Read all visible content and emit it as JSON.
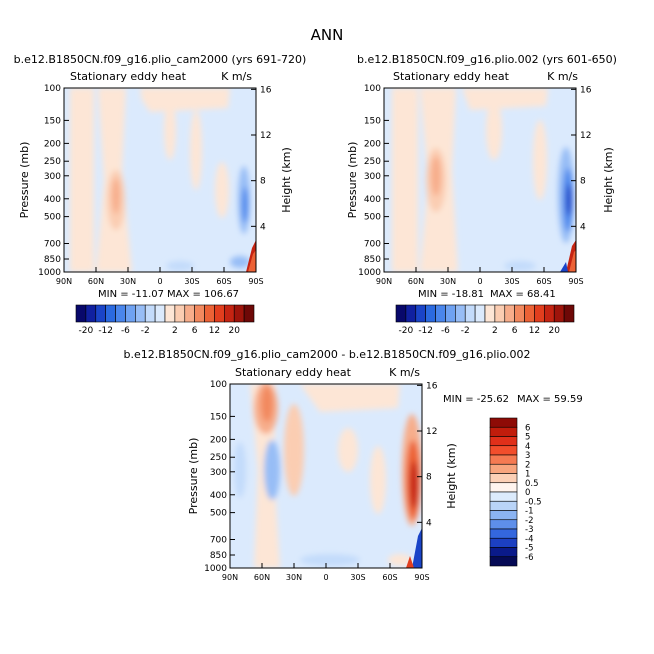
{
  "figure": {
    "title": "ANN"
  },
  "chart_data": [
    {
      "type": "heatmap",
      "title": "b.e12.B1850CN.f09_g16.plio_cam2000 (yrs 691-720)",
      "subtitle": "Stationary eddy heat",
      "units": "K m/s",
      "xlabel": "",
      "ylabel": "Pressure (mb)",
      "y2label": "Height (km)",
      "x_ticks": [
        "90N",
        "60N",
        "30N",
        "0",
        "30S",
        "60S",
        "90S"
      ],
      "y_ticks": [
        "100",
        "150",
        "200",
        "250",
        "300",
        "400",
        "500",
        "700",
        "850",
        "1000"
      ],
      "y2_ticks": [
        "16",
        "12",
        "8",
        "4"
      ],
      "min_label": "MIN = -11.07",
      "max_label": "MAX = 106.67",
      "min": -11.07,
      "max": 106.67,
      "colorbar_labels": [
        "-20",
        "-12",
        "-6",
        "-2",
        "2",
        "6",
        "12",
        "20"
      ],
      "colorbar_levels": [
        -20,
        -16,
        -12,
        -8,
        -6,
        -4,
        -2,
        -1,
        1,
        2,
        4,
        6,
        8,
        12,
        16,
        20
      ],
      "features": [
        {
          "lat": 42,
          "p": 350,
          "value": 2,
          "note": "positive band"
        },
        {
          "lat": -85,
          "p": 400,
          "value": -4
        },
        {
          "lat": -87,
          "p": 900,
          "value": 20
        }
      ]
    },
    {
      "type": "heatmap",
      "title": "b.e12.B1850CN.f09_g16.plio.002 (yrs 601-650)",
      "subtitle": "Stationary eddy heat",
      "units": "K m/s",
      "xlabel": "",
      "ylabel": "Pressure (mb)",
      "y2label": "Height (km)",
      "x_ticks": [
        "90N",
        "60N",
        "30N",
        "0",
        "30S",
        "60S",
        "90S"
      ],
      "y_ticks": [
        "100",
        "150",
        "200",
        "250",
        "300",
        "400",
        "500",
        "700",
        "850",
        "1000"
      ],
      "y2_ticks": [
        "16",
        "12",
        "8",
        "4"
      ],
      "min_label": "MIN = -18.81",
      "max_label": "MAX = 68.41",
      "min": -18.81,
      "max": 68.41,
      "colorbar_labels": [
        "-20",
        "-12",
        "-6",
        "-2",
        "2",
        "6",
        "12",
        "20"
      ],
      "colorbar_levels": [
        -20,
        -16,
        -12,
        -8,
        -6,
        -4,
        -2,
        -1,
        1,
        2,
        4,
        6,
        8,
        12,
        16,
        20
      ],
      "features": [
        {
          "lat": 40,
          "p": 300,
          "value": 4
        },
        {
          "lat": -85,
          "p": 400,
          "value": -8
        },
        {
          "lat": -87,
          "p": 900,
          "value": 20
        }
      ]
    },
    {
      "type": "heatmap",
      "title": "b.e12.B1850CN.f09_g16.plio_cam2000 - b.e12.B1850CN.f09_g16.plio.002",
      "subtitle": "Stationary eddy heat",
      "units": "K m/s",
      "xlabel": "",
      "ylabel": "Pressure (mb)",
      "y2label": "Height (km)",
      "x_ticks": [
        "90N",
        "60N",
        "30N",
        "0",
        "30S",
        "60S",
        "90S"
      ],
      "y_ticks": [
        "100",
        "150",
        "200",
        "250",
        "300",
        "400",
        "500",
        "700",
        "850",
        "1000"
      ],
      "y2_ticks": [
        "16",
        "12",
        "8",
        "4"
      ],
      "min_label": "MIN = -25.62",
      "max_label": "MAX =  59.59",
      "min": -25.62,
      "max": 59.59,
      "colorbar_labels": [
        "6",
        "5",
        "4",
        "3",
        "2",
        "1",
        "0.5",
        "0",
        "-0.5",
        "-1",
        "-2",
        "-3",
        "-4",
        "-5",
        "-6"
      ],
      "colorbar_levels": [
        6,
        5,
        4,
        3,
        2,
        1,
        0.5,
        0,
        -0.5,
        -1,
        -2,
        -3,
        -4,
        -5,
        -6
      ],
      "features": [
        {
          "lat": 55,
          "p": 130,
          "value": 3
        },
        {
          "lat": -85,
          "p": 400,
          "value": 4
        },
        {
          "lat": -87,
          "p": 850,
          "value": -4
        }
      ]
    }
  ],
  "colors": {
    "cool": [
      "#08086b",
      "#1020a0",
      "#1a44c8",
      "#2b6ae0",
      "#4a86ec",
      "#6fa2f2",
      "#97bdf6",
      "#c3dbfb",
      "#dbeafd"
    ],
    "warm": [
      "#fde6d6",
      "#fbcdb2",
      "#f7ad8b",
      "#f2895f",
      "#ec6236",
      "#e23e1e",
      "#c52412",
      "#9e140b",
      "#6e0807"
    ],
    "diff_bar": [
      "#8e0b06",
      "#c11d0c",
      "#e0301a",
      "#f24e2c",
      "#f57a52",
      "#f8a57e",
      "#fcd0b6",
      "#fff4ee",
      "#dcebfc",
      "#b9d4f8",
      "#8bb4f2",
      "#5e8fea",
      "#3467de",
      "#1c40c2",
      "#0a1a8a",
      "#050a55"
    ],
    "frame": "#000000"
  }
}
